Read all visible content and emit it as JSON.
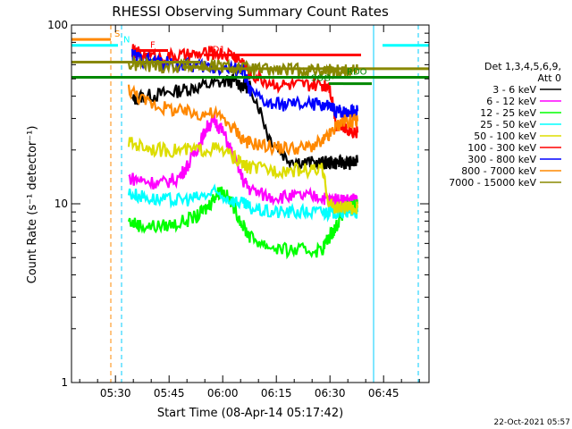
{
  "chart_data": {
    "type": "line",
    "title": "RHESSI Observing Summary Count Rates",
    "xlabel": "Start Time (08-Apr-14 05:17:42)",
    "ylabel": "Count Rate (s⁻¹ detector⁻¹)",
    "ylog": true,
    "ylim": [
      1,
      100
    ],
    "xlim_minutes_after_start": [
      0,
      100
    ],
    "x_ticks": [
      {
        "label": "05:30",
        "minutes": 12.3
      },
      {
        "label": "05:45",
        "minutes": 27.3
      },
      {
        "label": "06:00",
        "minutes": 42.3
      },
      {
        "label": "06:15",
        "minutes": 57.3
      },
      {
        "label": "06:30",
        "minutes": 72.3
      },
      {
        "label": "06:45",
        "minutes": 87.3
      }
    ],
    "y_ticks": [
      "1",
      "10",
      "100"
    ],
    "legend": {
      "header": [
        "Det 1,3,4,5,6,9,",
        "Att 0"
      ],
      "placement": "right"
    },
    "series": [
      {
        "name": "3 - 6 keV",
        "color": "#000000",
        "x": [
          17,
          20,
          25,
          30,
          35,
          40,
          45,
          48,
          50,
          55,
          60,
          65,
          70,
          72,
          74,
          76,
          78,
          80
        ],
        "y": [
          38,
          40,
          41,
          43,
          45,
          47,
          49,
          46,
          45,
          24,
          18,
          17,
          17,
          17,
          17,
          17,
          17,
          17
        ]
      },
      {
        "name": "6 - 12 keV",
        "color": "#ff00ff",
        "x": [
          16,
          20,
          25,
          30,
          33,
          36,
          38,
          40,
          42,
          45,
          48,
          50,
          55,
          60,
          65,
          70,
          72,
          74,
          76,
          78,
          80
        ],
        "y": [
          14,
          13.5,
          13,
          14,
          17,
          22,
          27,
          29,
          26,
          19,
          13.5,
          12,
          11,
          11,
          11,
          11,
          10.5,
          10.5,
          10.5,
          10.5,
          10.5
        ]
      },
      {
        "name": "12 - 25 keV",
        "color": "#00ff00",
        "x": [
          16,
          20,
          25,
          30,
          35,
          38,
          40,
          42,
          45,
          48,
          50,
          55,
          60,
          65,
          70,
          72,
          74,
          76,
          78,
          80
        ],
        "y": [
          8,
          7.5,
          7.5,
          7.8,
          8.5,
          9.5,
          11,
          12,
          10,
          7.5,
          6.5,
          5.8,
          5.5,
          5.5,
          5.5,
          6.5,
          7.5,
          9,
          9.5,
          10
        ]
      },
      {
        "name": "25 - 50 keV",
        "color": "#00ffff",
        "x": [
          16,
          20,
          25,
          30,
          35,
          40,
          45,
          48,
          50,
          55,
          60,
          65,
          70,
          72,
          74,
          76,
          78,
          80
        ],
        "y": [
          11.5,
          11,
          10.5,
          10.5,
          10.8,
          11.5,
          10.5,
          10,
          9.5,
          9,
          9,
          9,
          9,
          9,
          9,
          9,
          9,
          9
        ]
      },
      {
        "name": "50 - 100 keV",
        "color": "#dddd00",
        "x": [
          16,
          20,
          25,
          30,
          35,
          40,
          45,
          48,
          50,
          55,
          60,
          65,
          70,
          72,
          74,
          76,
          78,
          80
        ],
        "y": [
          22,
          21,
          20,
          20,
          20,
          20.5,
          18.5,
          16.5,
          16,
          15.5,
          15.5,
          15.5,
          15.5,
          10,
          9.5,
          9.5,
          9.5,
          9.5
        ]
      },
      {
        "name": "100 - 300 keV",
        "color": "#ff0000",
        "x": [
          17,
          20,
          25,
          30,
          35,
          40,
          45,
          48,
          50,
          55,
          60,
          65,
          70,
          72,
          74,
          76,
          78,
          80
        ],
        "y": [
          72,
          68,
          66,
          67,
          68,
          70,
          68,
          62,
          53,
          48,
          46,
          46,
          46,
          47,
          28,
          27,
          26,
          25
        ]
      },
      {
        "name": "300 - 800 keV",
        "color": "#0000ff",
        "x": [
          17,
          20,
          25,
          30,
          35,
          40,
          45,
          48,
          50,
          55,
          60,
          65,
          70,
          72,
          74,
          76,
          78,
          80
        ],
        "y": [
          68,
          64,
          62,
          60,
          59,
          58,
          57,
          56,
          42,
          36,
          36,
          36,
          36,
          35,
          33,
          33,
          33,
          33
        ]
      },
      {
        "name": "800 - 7000 keV",
        "color": "#ff8800",
        "x": [
          16,
          20,
          25,
          30,
          35,
          40,
          45,
          48,
          50,
          55,
          60,
          65,
          70,
          72,
          74,
          76,
          78,
          80
        ],
        "y": [
          44,
          38,
          35,
          33,
          32,
          32,
          27,
          23,
          22,
          21,
          20.5,
          20.5,
          22,
          24,
          27,
          29,
          29,
          29
        ]
      },
      {
        "name": "7000 - 15000 keV",
        "color": "#888800",
        "x": [
          16,
          20,
          25,
          30,
          35,
          40,
          45,
          50,
          55,
          60,
          65,
          70,
          72,
          74,
          76,
          78,
          80
        ],
        "y": [
          60,
          60,
          59,
          59,
          59,
          59,
          58,
          57,
          56,
          56,
          56,
          56,
          56,
          56,
          56,
          56,
          56
        ]
      }
    ],
    "flag_lines": [
      {
        "label": "S",
        "color": "#ff8800",
        "y": 83,
        "x": [
          0,
          11
        ],
        "label_x": 12
      },
      {
        "label": "N",
        "color": "#00ffff",
        "y": 77,
        "x": [
          0,
          13
        ],
        "label_x": 14.5
      },
      {
        "label": "",
        "color": "#00ffff",
        "y": 77,
        "x": [
          87,
          100
        ],
        "label_x": 0
      },
      {
        "label": "F",
        "color": "#ff0000",
        "y": 72,
        "x": [
          18,
          27
        ],
        "label_x": 22
      },
      {
        "label": "FD1",
        "color": "#ff0000",
        "y": 68,
        "x": [
          37,
          81
        ],
        "label_x": 38
      },
      {
        "label": "",
        "color": "#888800",
        "y": 62,
        "x": [
          0,
          36
        ],
        "label_x": 0
      },
      {
        "label": "",
        "color": "#888800",
        "y": 57,
        "x": [
          36,
          100
        ],
        "label_x": 0
      },
      {
        "label": "N",
        "color": "#888800",
        "y": 58,
        "x": [
          31,
          36
        ],
        "label_x": 31
      },
      {
        "label": "RDO",
        "color": "#008800",
        "y": 51,
        "x": [
          0,
          100
        ],
        "label_x": 77
      },
      {
        "label": "",
        "color": "#008800",
        "y": 47,
        "x": [
          76,
          84
        ],
        "label_x": 0
      },
      {
        "label": "SOG",
        "color": "#008800",
        "y": 47,
        "x": [
          72,
          76
        ],
        "label_x": 67
      }
    ],
    "vertical_markers": [
      {
        "x": 14,
        "color": "#00ccff",
        "style": "dashed"
      },
      {
        "x": 11,
        "color": "#ff8800",
        "style": "dashed"
      },
      {
        "x": 84.5,
        "color": "#00ccff",
        "style": "solid"
      },
      {
        "x": 97,
        "color": "#00ccff",
        "style": "dashed"
      }
    ],
    "bottom_stamp": "22-Oct-2021 05:57"
  }
}
